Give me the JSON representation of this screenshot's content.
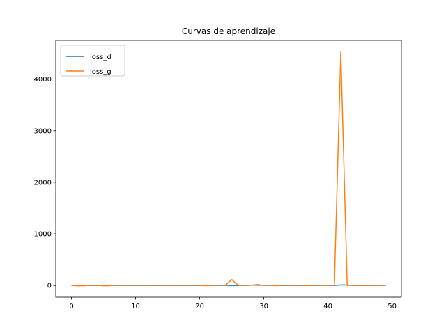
{
  "chart_data": {
    "type": "line",
    "title": "Curvas de aprendizaje",
    "xlabel": "",
    "ylabel": "",
    "xlim": [
      -2.45,
      51.45
    ],
    "ylim": [
      -226,
      4750
    ],
    "xticks": [
      0,
      10,
      20,
      30,
      40,
      50
    ],
    "yticks": [
      0,
      1000,
      2000,
      3000,
      4000
    ],
    "grid": false,
    "legend_position": "top-left",
    "x": [
      0,
      1,
      2,
      3,
      4,
      5,
      6,
      7,
      8,
      9,
      10,
      11,
      12,
      13,
      14,
      15,
      16,
      17,
      18,
      19,
      20,
      21,
      22,
      23,
      24,
      25,
      26,
      27,
      28,
      29,
      30,
      31,
      32,
      33,
      34,
      35,
      36,
      37,
      38,
      39,
      40,
      41,
      42,
      43,
      44,
      45,
      46,
      47,
      48,
      49
    ],
    "series": [
      {
        "name": "loss_d",
        "color": "#1f77b4",
        "values": [
          2,
          1,
          1,
          1,
          1,
          1,
          1,
          1,
          1,
          1,
          1,
          1,
          1,
          1,
          1,
          1,
          1,
          1,
          1,
          1,
          1,
          1,
          1,
          1,
          1,
          1,
          1,
          1,
          5,
          15,
          3,
          1,
          1,
          1,
          1,
          1,
          1,
          1,
          1,
          1,
          1,
          1,
          12,
          10,
          1,
          1,
          1,
          1,
          1,
          1
        ]
      },
      {
        "name": "loss_g",
        "color": "#ff7f0e",
        "values": [
          5,
          -5,
          -3,
          5,
          3,
          -5,
          -3,
          6,
          6,
          5,
          6,
          6,
          7,
          3,
          5,
          7,
          5,
          6,
          7,
          6,
          3,
          -3,
          5,
          7,
          7,
          115,
          3,
          6,
          6,
          4,
          5,
          3,
          -3,
          6,
          5,
          5,
          4,
          -2,
          6,
          4,
          6,
          3,
          4530,
          2,
          3,
          5,
          4,
          5,
          4,
          3
        ]
      }
    ]
  }
}
